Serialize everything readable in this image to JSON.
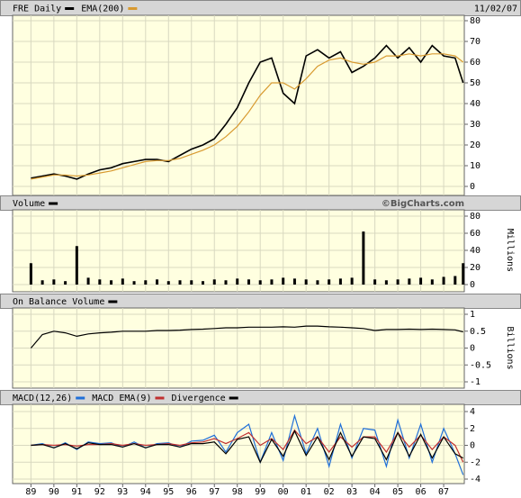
{
  "chart_data": [
    {
      "type": "line",
      "date": "11/02/07",
      "x": [
        1989,
        1989.5,
        1990,
        1990.5,
        1991,
        1991.5,
        1992,
        1992.5,
        1993,
        1993.5,
        1994,
        1994.5,
        1995,
        1995.5,
        1996,
        1996.5,
        1997,
        1997.5,
        1998,
        1998.5,
        1999,
        1999.5,
        2000,
        2000.5,
        2001,
        2001.5,
        2002,
        2002.5,
        2003,
        2003.5,
        2004,
        2004.5,
        2005,
        2005.5,
        2006,
        2006.5,
        2007,
        2007.5,
        2007.85
      ],
      "xlim": [
        1988.2,
        2007.9
      ],
      "ylim": [
        0,
        80
      ],
      "yticks": [
        0,
        10,
        20,
        30,
        40,
        50,
        60,
        70,
        80
      ],
      "grid": true,
      "series": [
        {
          "name": "FRE Daily",
          "color": "#000000",
          "values": [
            4,
            5,
            6,
            5,
            3.5,
            6,
            8,
            9,
            11,
            12,
            13,
            13,
            12,
            15,
            18,
            20,
            23,
            30,
            38,
            50,
            60,
            62,
            45,
            40,
            63,
            66,
            62,
            65,
            55,
            58,
            62,
            68,
            62,
            67,
            60,
            68,
            63,
            62,
            50
          ]
        },
        {
          "name": "EMA(200)",
          "color": "#d89a30",
          "values": [
            3.5,
            4.5,
            5.5,
            5.5,
            5,
            5.5,
            6.5,
            7.5,
            9,
            10.5,
            12,
            12.5,
            12.5,
            13.5,
            15.5,
            17.5,
            20,
            24,
            29,
            36,
            44,
            50,
            50,
            47,
            52,
            58,
            61,
            62,
            60,
            59,
            60,
            63,
            63,
            64,
            63,
            64,
            64,
            63,
            60
          ]
        }
      ]
    },
    {
      "type": "bar",
      "annotation": "©BigCharts.com",
      "y_label": "Millions",
      "x": [
        1989,
        1989.5,
        1990,
        1990.5,
        1991,
        1991.5,
        1992,
        1992.5,
        1993,
        1993.5,
        1994,
        1994.5,
        1995,
        1995.5,
        1996,
        1996.5,
        1997,
        1997.5,
        1998,
        1998.5,
        1999,
        1999.5,
        2000,
        2000.5,
        2001,
        2001.5,
        2002,
        2002.5,
        2003,
        2003.5,
        2004,
        2004.5,
        2005,
        2005.5,
        2006,
        2006.5,
        2007,
        2007.5,
        2007.85
      ],
      "xlim": [
        1988.2,
        2007.9
      ],
      "ylim": [
        0,
        80
      ],
      "yticks": [
        0,
        20,
        40,
        60,
        80
      ],
      "grid": true,
      "series": [
        {
          "name": "Volume",
          "color": "#000000",
          "values": [
            25,
            5,
            6,
            4,
            45,
            8,
            6,
            5,
            7,
            4,
            5,
            6,
            4,
            5,
            5,
            4,
            6,
            5,
            7,
            6,
            5,
            6,
            8,
            7,
            6,
            5,
            6,
            7,
            8,
            62,
            6,
            5,
            6,
            7,
            8,
            6,
            9,
            10,
            25
          ]
        }
      ]
    },
    {
      "type": "line",
      "y_label": "Billions",
      "x": [
        1989,
        1989.5,
        1990,
        1990.5,
        1991,
        1991.5,
        1992,
        1992.5,
        1993,
        1993.5,
        1994,
        1994.5,
        1995,
        1995.5,
        1996,
        1996.5,
        1997,
        1997.5,
        1998,
        1998.5,
        1999,
        1999.5,
        2000,
        2000.5,
        2001,
        2001.5,
        2002,
        2002.5,
        2003,
        2003.5,
        2004,
        2004.5,
        2005,
        2005.5,
        2006,
        2006.5,
        2007,
        2007.5,
        2007.85
      ],
      "xlim": [
        1988.2,
        2007.9
      ],
      "ylim": [
        -1,
        1
      ],
      "yticks": [
        -1,
        -0.5,
        0,
        0.5,
        1
      ],
      "grid": true,
      "series": [
        {
          "name": "On Balance Volume",
          "color": "#000000",
          "values": [
            0,
            0.4,
            0.5,
            0.45,
            0.35,
            0.42,
            0.45,
            0.47,
            0.5,
            0.5,
            0.5,
            0.52,
            0.52,
            0.53,
            0.55,
            0.56,
            0.58,
            0.6,
            0.6,
            0.62,
            0.62,
            0.62,
            0.63,
            0.62,
            0.65,
            0.65,
            0.63,
            0.62,
            0.6,
            0.58,
            0.52,
            0.55,
            0.55,
            0.56,
            0.55,
            0.56,
            0.55,
            0.54,
            0.48
          ]
        }
      ]
    },
    {
      "type": "line",
      "x": [
        1989,
        1989.5,
        1990,
        1990.5,
        1991,
        1991.5,
        1992,
        1992.5,
        1993,
        1993.5,
        1994,
        1994.5,
        1995,
        1995.5,
        1996,
        1996.5,
        1997,
        1997.5,
        1998,
        1998.5,
        1999,
        1999.5,
        2000,
        2000.5,
        2001,
        2001.5,
        2002,
        2002.5,
        2003,
        2003.5,
        2004,
        2004.5,
        2005,
        2005.5,
        2006,
        2006.5,
        2007,
        2007.5,
        2007.85
      ],
      "xlim": [
        1988.2,
        2007.9
      ],
      "ylim": [
        -4,
        4
      ],
      "yticks": [
        -4,
        -2,
        0,
        2,
        4
      ],
      "grid": true,
      "xticks": [
        {
          "value": 1989,
          "label": "89"
        },
        {
          "value": 1990,
          "label": "90"
        },
        {
          "value": 1991,
          "label": "91"
        },
        {
          "value": 1992,
          "label": "92"
        },
        {
          "value": 1993,
          "label": "93"
        },
        {
          "value": 1994,
          "label": "94"
        },
        {
          "value": 1995,
          "label": "95"
        },
        {
          "value": 1996,
          "label": "96"
        },
        {
          "value": 1997,
          "label": "97"
        },
        {
          "value": 1998,
          "label": "98"
        },
        {
          "value": 1999,
          "label": "99"
        },
        {
          "value": 2000,
          "label": "00"
        },
        {
          "value": 2001,
          "label": "01"
        },
        {
          "value": 2002,
          "label": "02"
        },
        {
          "value": 2003,
          "label": "03"
        },
        {
          "value": 2004,
          "label": "04"
        },
        {
          "value": 2005,
          "label": "05"
        },
        {
          "value": 2006,
          "label": "06"
        },
        {
          "value": 2007,
          "label": "07"
        }
      ],
      "series": [
        {
          "name": "MACD(12,26)",
          "color": "#1f6fd8",
          "values": [
            0,
            0.2,
            -0.3,
            0.3,
            -0.5,
            0.4,
            0.2,
            0.3,
            -0.2,
            0.4,
            -0.3,
            0.2,
            0.3,
            -0.2,
            0.5,
            0.6,
            1.2,
            -0.8,
            1.5,
            2.5,
            -2,
            1.5,
            -1.8,
            3.5,
            -1,
            2,
            -2.5,
            2.5,
            -1.5,
            2,
            1.8,
            -2.5,
            3,
            -1.5,
            2.5,
            -2,
            2,
            -1,
            -3.5
          ]
        },
        {
          "name": "MACD EMA(9)",
          "color": "#c03030",
          "values": [
            0,
            0.1,
            0,
            0.1,
            -0.1,
            0.1,
            0.1,
            0.2,
            0,
            0.2,
            0,
            0.1,
            0.2,
            0,
            0.3,
            0.4,
            0.8,
            0.2,
            0.8,
            1.5,
            0,
            0.8,
            -0.5,
            1.8,
            0.2,
            1,
            -0.8,
            1,
            -0.2,
            1,
            1,
            -0.8,
            1.5,
            -0.2,
            1.2,
            -0.5,
            1,
            0,
            -2
          ]
        },
        {
          "name": "Divergence",
          "color": "#000000",
          "values": [
            0,
            0.1,
            -0.3,
            0.2,
            -0.4,
            0.3,
            0.1,
            0.1,
            -0.2,
            0.2,
            -0.3,
            0.1,
            0.1,
            -0.2,
            0.2,
            0.2,
            0.4,
            -1,
            0.7,
            1,
            -2,
            0.7,
            -1.3,
            1.7,
            -1.2,
            1,
            -1.7,
            1.5,
            -1.3,
            1,
            0.8,
            -1.7,
            1.5,
            -1.3,
            1.3,
            -1.5,
            1,
            -1,
            -1.5
          ]
        }
      ]
    }
  ]
}
